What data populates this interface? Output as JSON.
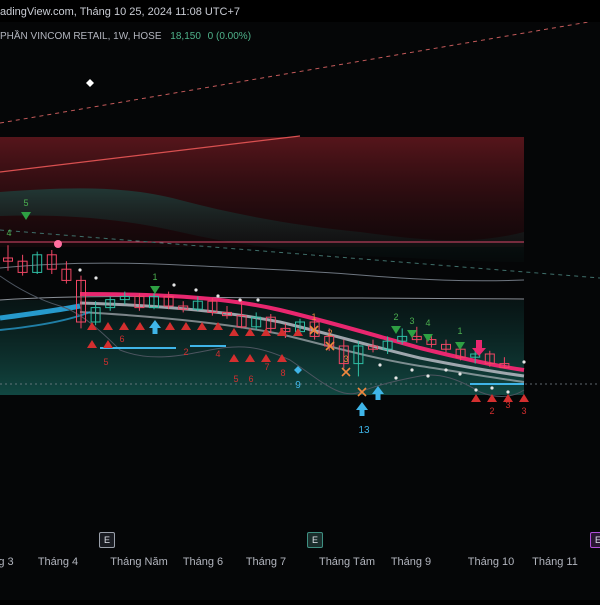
{
  "window": {
    "title_bar": "adingView.com, Tháng 10 25, 2024 11:08 UTC+7"
  },
  "legend": {
    "symbol": "PHẦN VINCOM RETAIL, 1W, HOSE",
    "price": "18,150",
    "change": "0 (0.00%)"
  },
  "colors": {
    "up": "#2fbfa5",
    "down": "#f04664",
    "band_pink": "#e8276f",
    "band_cyan": "#2aa8e0",
    "zone_red": "#6a1a22",
    "zone_teal": "#0f3b38",
    "accent_green": "#2ea043",
    "accent_orange": "#f0883e",
    "accent_blue": "#3fb5e8"
  },
  "xaxis": {
    "labels": [
      "g 3",
      "Tháng 4",
      "Tháng Năm",
      "Tháng 6",
      "Tháng 7",
      "Tháng Tám",
      "Tháng 9",
      "Tháng 10",
      "Tháng 11"
    ],
    "earnings_badges": [
      {
        "label": "E",
        "style": "grey"
      },
      {
        "label": "E",
        "style": "green"
      },
      {
        "label": "E",
        "style": "purple"
      }
    ]
  },
  "chart_data": {
    "type": "candlestick",
    "interval": "1W",
    "x": [
      "2024-02-26",
      "2024-03-04",
      "2024-03-11",
      "2024-03-18",
      "2024-03-25",
      "2024-04-01",
      "2024-04-08",
      "2024-04-15",
      "2024-04-22",
      "2024-04-29",
      "2024-05-06",
      "2024-05-13",
      "2024-05-20",
      "2024-05-27",
      "2024-06-03",
      "2024-06-10",
      "2024-06-17",
      "2024-06-24",
      "2024-07-01",
      "2024-07-08",
      "2024-07-15",
      "2024-07-22",
      "2024-07-29",
      "2024-08-05",
      "2024-08-12",
      "2024-08-19",
      "2024-08-26",
      "2024-09-02",
      "2024-09-09",
      "2024-09-16",
      "2024-09-23",
      "2024-09-30",
      "2024-10-07",
      "2024-10-14",
      "2024-10-21"
    ],
    "ohlc": [
      [
        25.0,
        25.8,
        24.2,
        24.8
      ],
      [
        24.8,
        25.2,
        23.9,
        24.1
      ],
      [
        24.1,
        25.4,
        24.0,
        25.2
      ],
      [
        25.2,
        25.5,
        24.0,
        24.3
      ],
      [
        24.3,
        24.8,
        23.4,
        23.6
      ],
      [
        23.6,
        23.9,
        20.6,
        21.0
      ],
      [
        21.0,
        22.3,
        20.8,
        21.9
      ],
      [
        21.9,
        22.6,
        21.7,
        22.4
      ],
      [
        22.4,
        22.9,
        22.1,
        22.6
      ],
      [
        22.6,
        22.8,
        21.7,
        21.9
      ],
      [
        21.9,
        22.8,
        21.8,
        22.6
      ],
      [
        22.6,
        22.9,
        21.8,
        22.0
      ],
      [
        22.0,
        22.3,
        21.6,
        21.8
      ],
      [
        21.8,
        22.6,
        21.7,
        22.3
      ],
      [
        22.3,
        22.5,
        21.4,
        21.6
      ],
      [
        21.6,
        22.0,
        21.2,
        21.4
      ],
      [
        21.4,
        22.4,
        20.6,
        20.7
      ],
      [
        20.7,
        21.6,
        20.5,
        21.3
      ],
      [
        21.3,
        21.5,
        20.3,
        20.6
      ],
      [
        20.6,
        20.9,
        20.0,
        20.4
      ],
      [
        20.4,
        21.2,
        20.2,
        21.0
      ],
      [
        21.0,
        21.3,
        19.9,
        20.1
      ],
      [
        20.1,
        20.6,
        19.2,
        19.5
      ],
      [
        19.5,
        19.9,
        18.1,
        18.4
      ],
      [
        18.4,
        19.8,
        17.6,
        19.5
      ],
      [
        19.5,
        19.9,
        19.1,
        19.3
      ],
      [
        19.3,
        20.1,
        19.0,
        19.8
      ],
      [
        19.8,
        20.6,
        19.6,
        20.1
      ],
      [
        20.1,
        20.7,
        19.7,
        19.9
      ],
      [
        19.9,
        20.2,
        19.4,
        19.6
      ],
      [
        19.6,
        19.9,
        19.1,
        19.3
      ],
      [
        19.3,
        19.6,
        18.6,
        18.8
      ],
      [
        18.8,
        19.3,
        18.4,
        19.0
      ],
      [
        19.0,
        19.2,
        18.2,
        18.4
      ],
      [
        18.4,
        18.8,
        18.1,
        18.15
      ]
    ],
    "last_price": 18.15,
    "annotations": {
      "sequence_numbers": [
        "5",
        "4",
        "1",
        "5",
        "6",
        "2",
        "4",
        "5",
        "6",
        "7",
        "8",
        "9",
        "1",
        "2",
        "3",
        "2",
        "3",
        "4",
        "1",
        "13",
        "1",
        "2",
        "3",
        "4"
      ],
      "markers": [
        "triangle-down-green",
        "triangle-up-red",
        "x-orange",
        "arrow-up-blue",
        "diamond-blue",
        "diamond-white",
        "dot-white"
      ]
    }
  }
}
